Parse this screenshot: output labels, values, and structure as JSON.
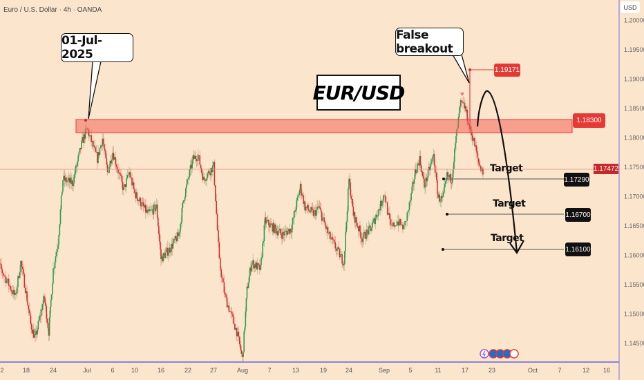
{
  "header": {
    "title": "Euro / U.S. Dollar · 4h · OANDA",
    "currency": "USD"
  },
  "annotations": {
    "date_callout": "01-Jul-2025",
    "breakout_callout": "False breakout",
    "symbol_box": "EUR/USD",
    "high_label": "1.19171",
    "resistance_label": "1.18300",
    "current_price_label": "1.17472",
    "targets": [
      {
        "text": "Target",
        "price_label": "1.17290"
      },
      {
        "text": "Target",
        "price_label": "1.16700"
      },
      {
        "text": "Target",
        "price_label": "1.16100"
      }
    ]
  },
  "colors": {
    "background": "#fce5cd",
    "up": "#2e9b4f",
    "down": "#d32f2f",
    "zone": "#f4978a",
    "axis": "#8c84d8",
    "label_red": "#e53935",
    "label_black": "#111111"
  },
  "chart_data": {
    "type": "candlestick",
    "title": "",
    "symbol": "EUR/USD",
    "timeframe": "4h",
    "ylim": [
      1.142,
      1.203
    ],
    "y_ticks": [
      "1.20000",
      "1.19500",
      "1.19000",
      "1.18500",
      "1.18000",
      "1.17500",
      "1.17000",
      "1.16500",
      "1.16000",
      "1.15500",
      "1.15000",
      "1.14500"
    ],
    "x_ticks": [
      "2",
      "18",
      "24",
      "Jul",
      "6",
      "10",
      "16",
      "22",
      "27",
      "Aug",
      "7",
      "13",
      "19",
      "24",
      "Sep",
      "5",
      "11",
      "17",
      "23",
      "Oct",
      "7",
      "12",
      "16"
    ],
    "grid": false,
    "resistance_zone": [
      1.1807,
      1.183
    ],
    "false_breakout_high": 1.19171,
    "current_price": 1.17472,
    "target_levels": [
      1.1729,
      1.167,
      1.161
    ],
    "price_path_approx": [
      [
        "2025-06-12",
        1.1544
      ],
      [
        "2025-06-13",
        1.1584
      ],
      [
        "2025-06-16",
        1.1529
      ],
      [
        "2025-06-17",
        1.1588
      ],
      [
        "2025-06-19",
        1.1482
      ],
      [
        "2025-06-20",
        1.1458
      ],
      [
        "2025-06-22",
        1.1529
      ],
      [
        "2025-06-23",
        1.147
      ],
      [
        "2025-06-24",
        1.1576
      ],
      [
        "2025-06-25",
        1.1623
      ],
      [
        "2025-06-26",
        1.1729
      ],
      [
        "2025-06-28",
        1.1723
      ],
      [
        "2025-06-30",
        1.1794
      ],
      [
        "2025-07-01",
        1.1815
      ],
      [
        "2025-07-03",
        1.1764
      ],
      [
        "2025-07-04",
        1.1799
      ],
      [
        "2025-07-05",
        1.1741
      ],
      [
        "2025-07-06",
        1.1776
      ],
      [
        "2025-07-08",
        1.1711
      ],
      [
        "2025-07-09",
        1.1741
      ],
      [
        "2025-07-10",
        1.1705
      ],
      [
        "2025-07-11",
        1.1694
      ],
      [
        "2025-07-13",
        1.167
      ],
      [
        "2025-07-15",
        1.1682
      ],
      [
        "2025-07-16",
        1.1594
      ],
      [
        "2025-07-18",
        1.1611
      ],
      [
        "2025-07-20",
        1.1635
      ],
      [
        "2025-07-21",
        1.1694
      ],
      [
        "2025-07-23",
        1.1764
      ],
      [
        "2025-07-24",
        1.177
      ],
      [
        "2025-07-25",
        1.1729
      ],
      [
        "2025-07-27",
        1.1752
      ],
      [
        "2025-07-28",
        1.1588
      ],
      [
        "2025-07-29",
        1.1529
      ],
      [
        "2025-07-31",
        1.147
      ],
      [
        "2025-08-01",
        1.1423
      ],
      [
        "2025-08-02",
        1.1541
      ],
      [
        "2025-08-03",
        1.1588
      ],
      [
        "2025-08-05",
        1.1576
      ],
      [
        "2025-08-06",
        1.1658
      ],
      [
        "2025-08-08",
        1.1646
      ],
      [
        "2025-08-10",
        1.1635
      ],
      [
        "2025-08-12",
        1.1646
      ],
      [
        "2025-08-14",
        1.1717
      ],
      [
        "2025-08-15",
        1.1682
      ],
      [
        "2025-08-17",
        1.167
      ],
      [
        "2025-08-18",
        1.1682
      ],
      [
        "2025-08-20",
        1.1635
      ],
      [
        "2025-08-23",
        1.1588
      ],
      [
        "2025-08-24",
        1.1729
      ],
      [
        "2025-08-25",
        1.167
      ],
      [
        "2025-08-27",
        1.1629
      ],
      [
        "2025-08-29",
        1.1646
      ],
      [
        "2025-08-31",
        1.1682
      ],
      [
        "2025-09-01",
        1.1705
      ],
      [
        "2025-09-02",
        1.1646
      ],
      [
        "2025-09-03",
        1.1658
      ],
      [
        "2025-09-04",
        1.1646
      ],
      [
        "2025-09-06",
        1.1741
      ],
      [
        "2025-09-07",
        1.1764
      ],
      [
        "2025-09-08",
        1.1717
      ],
      [
        "2025-09-10",
        1.177
      ],
      [
        "2025-09-11",
        1.1699
      ],
      [
        "2025-09-12",
        1.1694
      ],
      [
        "2025-09-13",
        1.1735
      ],
      [
        "2025-09-14",
        1.1729
      ],
      [
        "2025-09-15",
        1.1799
      ],
      [
        "2025-09-16",
        1.1858
      ],
      [
        "2025-09-17",
        1.1852
      ],
      [
        "2025-09-18",
        1.1817
      ],
      [
        "2025-09-19",
        1.1794
      ],
      [
        "2025-09-20",
        1.1758
      ],
      [
        "2025-09-21",
        1.1741
      ]
    ]
  }
}
